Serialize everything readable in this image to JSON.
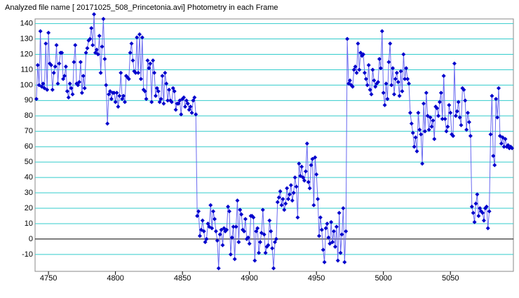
{
  "chart_data": {
    "type": "line",
    "title": "Analyzed file name [ 20171025_508_Princetonia.avi]   Photometry in each Frame",
    "x": [
      4741,
      4742,
      4743,
      4744,
      4745,
      4746,
      4747,
      4748,
      4749,
      4750,
      4751,
      4752,
      4753,
      4754,
      4755,
      4756,
      4757,
      4758,
      4759,
      4760,
      4761,
      4762,
      4763,
      4764,
      4765,
      4766,
      4767,
      4768,
      4769,
      4770,
      4771,
      4772,
      4773,
      4774,
      4775,
      4776,
      4777,
      4778,
      4779,
      4780,
      4781,
      4782,
      4783,
      4784,
      4785,
      4786,
      4787,
      4788,
      4789,
      4790,
      4791,
      4792,
      4793,
      4794,
      4795,
      4796,
      4797,
      4798,
      4799,
      4800,
      4801,
      4802,
      4803,
      4804,
      4805,
      4806,
      4807,
      4808,
      4809,
      4810,
      4811,
      4812,
      4813,
      4814,
      4815,
      4816,
      4817,
      4818,
      4819,
      4820,
      4821,
      4822,
      4823,
      4824,
      4825,
      4826,
      4827,
      4828,
      4829,
      4830,
      4831,
      4832,
      4833,
      4834,
      4835,
      4836,
      4837,
      4838,
      4839,
      4840,
      4841,
      4842,
      4843,
      4844,
      4845,
      4846,
      4847,
      4848,
      4849,
      4850,
      4851,
      4852,
      4853,
      4854,
      4855,
      4856,
      4857,
      4858,
      4859,
      4860,
      4861,
      4862,
      4863,
      4864,
      4865,
      4866,
      4867,
      4868,
      4869,
      4870,
      4871,
      4872,
      4873,
      4874,
      4875,
      4876,
      4877,
      4878,
      4879,
      4880,
      4881,
      4882,
      4883,
      4884,
      4885,
      4886,
      4887,
      4888,
      4889,
      4890,
      4891,
      4892,
      4893,
      4894,
      4895,
      4896,
      4897,
      4898,
      4899,
      4900,
      4901,
      4902,
      4903,
      4904,
      4905,
      4906,
      4907,
      4908,
      4909,
      4910,
      4911,
      4912,
      4913,
      4914,
      4915,
      4916,
      4917,
      4918,
      4919,
      4920,
      4921,
      4922,
      4923,
      4924,
      4925,
      4926,
      4927,
      4928,
      4929,
      4930,
      4931,
      4932,
      4933,
      4934,
      4935,
      4936,
      4937,
      4938,
      4939,
      4940,
      4941,
      4942,
      4943,
      4944,
      4945,
      4946,
      4947,
      4948,
      4949,
      4950,
      4951,
      4952,
      4953,
      4954,
      4955,
      4956,
      4957,
      4958,
      4959,
      4960,
      4961,
      4962,
      4963,
      4964,
      4965,
      4966,
      4967,
      4968,
      4969,
      4970,
      4971,
      4972,
      4973,
      4974,
      4975,
      4976,
      4977,
      4978,
      4979,
      4980,
      4981,
      4982,
      4983,
      4984,
      4985,
      4986,
      4987,
      4988,
      4989,
      4990,
      4991,
      4992,
      4993,
      4994,
      4995,
      4996,
      4997,
      4998,
      4999,
      5000,
      5001,
      5002,
      5003,
      5004,
      5005,
      5006,
      5007,
      5008,
      5009,
      5010,
      5011,
      5012,
      5013,
      5014,
      5015,
      5016,
      5017,
      5018,
      5019,
      5020,
      5021,
      5022,
      5023,
      5024,
      5025,
      5026,
      5027,
      5028,
      5029,
      5030,
      5031,
      5032,
      5033,
      5034,
      5035,
      5036,
      5037,
      5038,
      5039,
      5040,
      5041,
      5042,
      5043,
      5044,
      5045,
      5046,
      5047,
      5048,
      5049,
      5050,
      5051,
      5052,
      5053,
      5054,
      5055,
      5056,
      5057,
      5058,
      5059,
      5060,
      5061,
      5062,
      5063,
      5064,
      5065,
      5066,
      5067,
      5068,
      5069,
      5070,
      5071,
      5072,
      5073,
      5074,
      5075,
      5076,
      5077,
      5078,
      5079,
      5080,
      5081,
      5082,
      5083,
      5084,
      5085,
      5086,
      5087,
      5088,
      5089,
      5090,
      5091,
      5092,
      5093,
      5094,
      5095,
      5096
    ],
    "series": [
      {
        "color": "#0000cc",
        "values": [
          91,
          113,
          100,
          135,
          99,
          101,
          98,
          127,
          97,
          134,
          114,
          113,
          97,
          108,
          112,
          126,
          101,
          114,
          121,
          121,
          104,
          106,
          112,
          96,
          92,
          101,
          98,
          94,
          115,
          126,
          101,
          100,
          102,
          115,
          95,
          106,
          98,
          121,
          124,
          129,
          130,
          137,
          126,
          146,
          121,
          123,
          120,
          132,
          108,
          125,
          143,
          117,
          100,
          75,
          94,
          96,
          91,
          95,
          95,
          89,
          95,
          86,
          93,
          108,
          91,
          93,
          89,
          106,
          105,
          104,
          121,
          127,
          116,
          109,
          108,
          131,
          108,
          133,
          104,
          131,
          97,
          96,
          91,
          116,
          111,
          114,
          89,
          116,
          108,
          93,
          98,
          96,
          89,
          91,
          106,
          88,
          108,
          101,
          90,
          97,
          90,
          89,
          98,
          96,
          84,
          88,
          88,
          90,
          81,
          91,
          92,
          86,
          90,
          88,
          84,
          86,
          82,
          90,
          92,
          81,
          15,
          18,
          2,
          6,
          12,
          5,
          -2,
          0,
          10,
          8,
          22,
          7,
          18,
          13,
          5,
          -1,
          -19,
          3,
          6,
          -4,
          7,
          5,
          6,
          21,
          18,
          -10,
          1,
          8,
          -13,
          8,
          25,
          -2,
          19,
          16,
          6,
          5,
          13,
          0,
          1,
          -3,
          15,
          15,
          14,
          -14,
          5,
          7,
          -9,
          -2,
          4,
          19,
          3,
          -9,
          -5,
          -4,
          12,
          5,
          -6,
          -19,
          -2,
          0,
          24,
          27,
          31,
          22,
          26,
          19,
          23,
          33,
          26,
          29,
          35,
          25,
          30,
          40,
          34,
          14,
          49,
          41,
          47,
          40,
          38,
          44,
          62,
          37,
          33,
          48,
          52,
          22,
          53,
          42,
          26,
          2,
          14,
          6,
          -7,
          -15,
          7,
          10,
          1,
          -3,
          11,
          -2,
          5,
          -5,
          8,
          -14,
          17,
          -9,
          3,
          20,
          -15,
          5,
          130,
          101,
          103,
          100,
          99,
          110,
          112,
          108,
          127,
          110,
          121,
          119,
          120,
          108,
          104,
          100,
          113,
          97,
          94,
          110,
          103,
          99,
          101,
          102,
          117,
          111,
          135,
          95,
          87,
          101,
          91,
          115,
          127,
          100,
          111,
          94,
          104,
          108,
          102,
          93,
          109,
          96,
          120,
          104,
          111,
          104,
          101,
          82,
          75,
          69,
          60,
          66,
          57,
          82,
          71,
          68,
          49,
          88,
          70,
          95,
          80,
          71,
          79,
          73,
          77,
          65,
          86,
          85,
          80,
          89,
          95,
          78,
          106,
          78,
          70,
          73,
          87,
          82,
          68,
          67,
          114,
          80,
          83,
          89,
          79,
          74,
          98,
          97,
          90,
          71,
          82,
          76,
          67,
          21,
          17,
          11,
          23,
          29,
          15,
          20,
          18,
          17,
          12,
          20,
          21,
          7,
          18,
          68,
          93,
          54,
          48,
          91,
          79,
          98,
          67,
          62,
          66,
          60,
          65,
          60,
          61,
          59,
          60,
          59
        ]
      }
    ],
    "xlim": [
      4740,
      5097
    ],
    "xticks": [
      4750,
      4800,
      4850,
      4900,
      4950,
      5000,
      5050
    ],
    "ylim": [
      -21,
      143
    ],
    "yticks": [
      -10,
      0,
      10,
      20,
      30,
      40,
      50,
      60,
      70,
      80,
      90,
      100,
      110,
      120,
      130,
      140
    ],
    "grid": true,
    "grid_color": "#33cccc",
    "line_color": "#6a6af0"
  }
}
